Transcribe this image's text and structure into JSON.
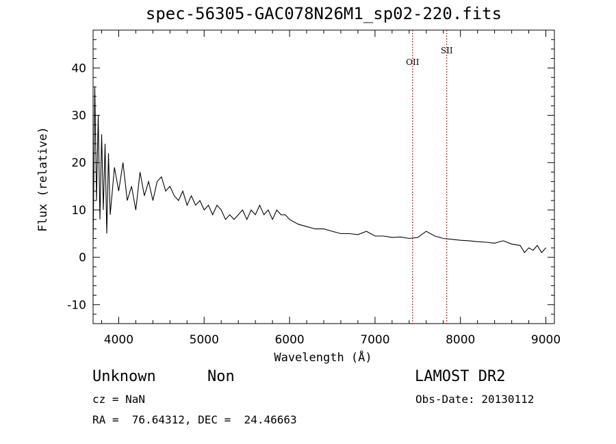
{
  "chart_data": {
    "type": "line",
    "title": "spec-56305-GAC078N26M1_sp02-220.fits",
    "xlabel": "Wavelength (Å)",
    "ylabel": "Flux (relative)",
    "xlim": [
      3700,
      9100
    ],
    "ylim": [
      -14,
      48
    ],
    "xticks": [
      4000,
      5000,
      6000,
      7000,
      8000,
      9000
    ],
    "yticks": [
      -10,
      0,
      10,
      20,
      30,
      40
    ],
    "series": [
      {
        "x": [
          3700,
          3720,
          3740,
          3760,
          3780,
          3800,
          3820,
          3840,
          3860,
          3880,
          3900,
          3950,
          4000,
          4050,
          4100,
          4150,
          4200,
          4250,
          4300,
          4350,
          4400,
          4450,
          4500,
          4550,
          4600,
          4650,
          4700,
          4750,
          4800,
          4850,
          4900,
          4950,
          5000,
          5050,
          5100,
          5150,
          5200,
          5250,
          5300,
          5350,
          5400,
          5450,
          5500,
          5550,
          5600,
          5650,
          5700,
          5750,
          5800,
          5850,
          5900,
          5950,
          6000,
          6100,
          6200,
          6300,
          6400,
          6500,
          6600,
          6700,
          6800,
          6900,
          7000,
          7100,
          7200,
          7300,
          7400,
          7500,
          7600,
          7700,
          7800,
          7900,
          8000,
          8100,
          8200,
          8300,
          8400,
          8500,
          8600,
          8700,
          8750,
          8800,
          8850,
          8900,
          8950,
          9000
        ],
        "y": [
          3,
          36,
          12,
          30,
          8,
          26,
          10,
          24,
          5,
          22,
          9,
          19,
          14,
          20,
          12,
          15,
          10,
          18,
          13,
          16,
          12,
          16,
          17,
          14,
          15,
          13,
          12,
          14,
          11,
          13,
          11,
          12,
          10,
          11,
          9,
          11,
          10,
          8,
          9,
          8,
          9,
          10,
          8,
          10,
          9,
          11,
          9,
          10,
          8,
          10,
          9,
          9,
          8,
          7,
          6.5,
          6,
          6,
          5.5,
          5,
          5,
          4.8,
          5.5,
          4.5,
          4.5,
          4.2,
          4.3,
          4,
          4.2,
          5.5,
          4.5,
          4,
          3.8,
          3.6,
          3.5,
          3.3,
          3.2,
          3,
          3.5,
          2.8,
          2.5,
          1,
          2,
          1.5,
          2.5,
          1,
          2
        ]
      }
    ],
    "annotations": [
      {
        "label": "OII",
        "x": 7440
      },
      {
        "label": "SII",
        "x": 7840
      }
    ],
    "grid": false,
    "legend": "none"
  },
  "info": {
    "class_label": "Unknown",
    "subclass_label": "Non",
    "survey_label": "LAMOST DR2",
    "cz_text": "cz = NaN",
    "obs_date_text": "Obs-Date: 20130112",
    "coords_text": "RA =  76.64312, DEC =  24.46663"
  }
}
